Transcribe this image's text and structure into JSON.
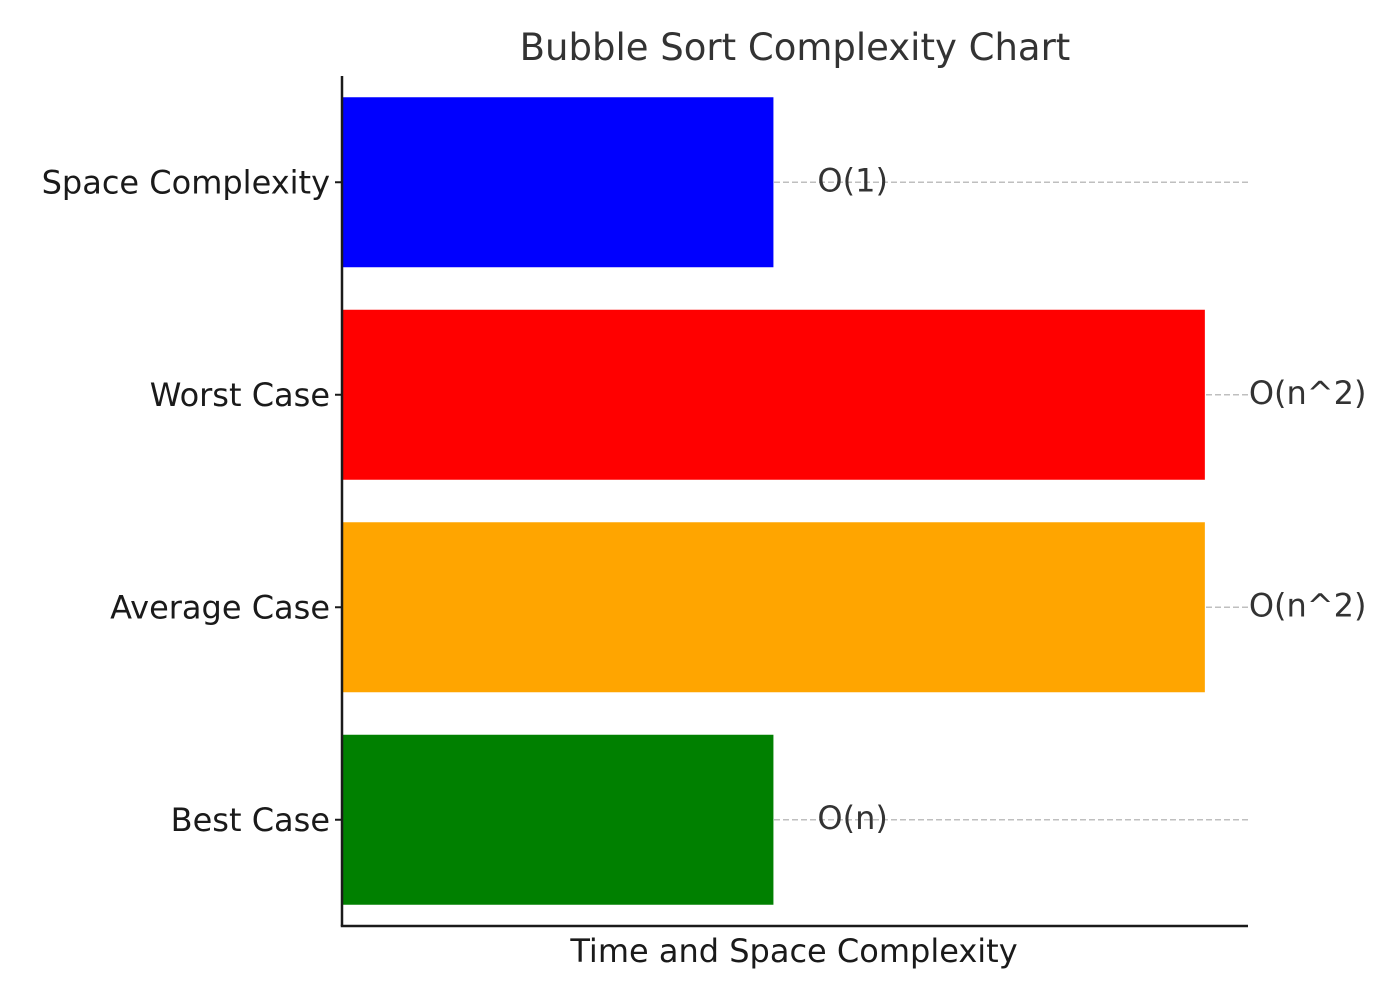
{
  "chart_data": {
    "type": "bar",
    "orientation": "horizontal",
    "title": "Bubble Sort Complexity Chart",
    "xlabel": "Time and Space Complexity",
    "ylabel": "",
    "xlim": [
      0,
      2.1
    ],
    "grid": "y-dashed",
    "categories": [
      "Best Case",
      "Average Case",
      "Worst Case",
      "Space Complexity"
    ],
    "values": [
      1,
      2,
      2,
      1
    ],
    "labels": [
      "O(n)",
      "O(n^2)",
      "O(n^2)",
      "O(1)"
    ],
    "colors": [
      "#008000",
      "#FFA500",
      "#FF0000",
      "#0000FF"
    ]
  }
}
